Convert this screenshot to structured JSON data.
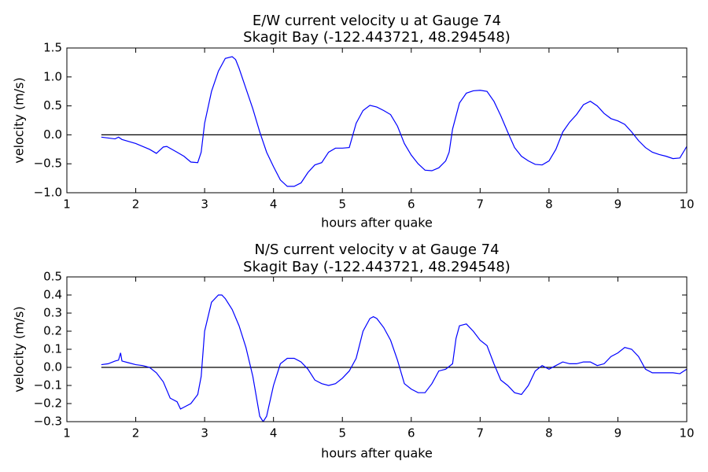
{
  "chart_data": [
    {
      "type": "line",
      "title": "E/W current velocity u at Gauge 74",
      "subtitle": "Skagit Bay  (-122.443721, 48.294548)",
      "xlabel": "hours after quake",
      "ylabel": "velocity (m/s)",
      "color": "#0000ff",
      "hline": 0,
      "hline_color": "#000000",
      "xlim": [
        1,
        10
      ],
      "xticks": [
        1,
        2,
        3,
        4,
        5,
        6,
        7,
        8,
        9,
        10
      ],
      "ylim": [
        -1.0,
        1.5
      ],
      "yticks": [
        {
          "value": -1.0,
          "label": "−1.0"
        },
        {
          "value": -0.5,
          "label": "−0.5"
        },
        {
          "value": 0.0,
          "label": "0.0"
        },
        0.5,
        {
          "value": 1.0,
          "label": "1.0"
        },
        1.5
      ],
      "x": [
        1.5,
        1.7,
        1.75,
        1.8,
        2.0,
        2.2,
        2.3,
        2.4,
        2.45,
        2.6,
        2.7,
        2.8,
        2.9,
        2.95,
        3.0,
        3.1,
        3.2,
        3.3,
        3.4,
        3.45,
        3.5,
        3.6,
        3.7,
        3.8,
        3.9,
        4.0,
        4.1,
        4.2,
        4.3,
        4.4,
        4.5,
        4.6,
        4.7,
        4.8,
        4.9,
        5.0,
        5.1,
        5.2,
        5.3,
        5.4,
        5.5,
        5.6,
        5.7,
        5.8,
        5.9,
        6.0,
        6.1,
        6.2,
        6.3,
        6.4,
        6.5,
        6.55,
        6.6,
        6.7,
        6.8,
        6.9,
        7.0,
        7.1,
        7.2,
        7.3,
        7.4,
        7.5,
        7.6,
        7.7,
        7.8,
        7.9,
        8.0,
        8.1,
        8.2,
        8.3,
        8.4,
        8.5,
        8.6,
        8.7,
        8.8,
        8.9,
        9.0,
        9.1,
        9.2,
        9.3,
        9.4,
        9.5,
        9.6,
        9.7,
        9.8,
        9.9,
        10.0
      ],
      "values": [
        -0.04,
        -0.07,
        -0.04,
        -0.08,
        -0.15,
        -0.25,
        -0.32,
        -0.21,
        -0.2,
        -0.3,
        -0.37,
        -0.47,
        -0.48,
        -0.3,
        0.2,
        0.75,
        1.1,
        1.32,
        1.35,
        1.3,
        1.15,
        0.8,
        0.45,
        0.05,
        -0.3,
        -0.55,
        -0.78,
        -0.89,
        -0.89,
        -0.83,
        -0.65,
        -0.52,
        -0.48,
        -0.3,
        -0.23,
        -0.23,
        -0.22,
        0.2,
        0.42,
        0.51,
        0.48,
        0.42,
        0.35,
        0.15,
        -0.15,
        -0.35,
        -0.5,
        -0.61,
        -0.62,
        -0.57,
        -0.45,
        -0.3,
        0.1,
        0.55,
        0.72,
        0.76,
        0.77,
        0.75,
        0.58,
        0.33,
        0.05,
        -0.22,
        -0.37,
        -0.45,
        -0.51,
        -0.52,
        -0.45,
        -0.25,
        0.05,
        0.22,
        0.35,
        0.52,
        0.58,
        0.5,
        0.37,
        0.28,
        0.24,
        0.18,
        0.05,
        -0.1,
        -0.22,
        -0.3,
        -0.34,
        -0.37,
        -0.41,
        -0.4,
        -0.2
      ]
    },
    {
      "type": "line",
      "title": "N/S current velocity v at Gauge 74",
      "subtitle": "Skagit Bay  (-122.443721, 48.294548)",
      "xlabel": "hours after quake",
      "ylabel": "velocity (m/s)",
      "color": "#0000ff",
      "hline": 0,
      "hline_color": "#000000",
      "xlim": [
        1,
        10
      ],
      "xticks": [
        1,
        2,
        3,
        4,
        5,
        6,
        7,
        8,
        9,
        10
      ],
      "ylim": [
        -0.3,
        0.5
      ],
      "yticks": [
        {
          "value": -0.3,
          "label": "−0.3"
        },
        {
          "value": -0.2,
          "label": "−0.2"
        },
        {
          "value": -0.1,
          "label": "−0.1"
        },
        {
          "value": 0.0,
          "label": "0.0"
        },
        0.1,
        0.2,
        0.3,
        0.4,
        0.5
      ],
      "x": [
        1.5,
        1.6,
        1.7,
        1.75,
        1.78,
        1.8,
        1.9,
        2.0,
        2.1,
        2.2,
        2.3,
        2.4,
        2.5,
        2.6,
        2.65,
        2.7,
        2.8,
        2.9,
        2.95,
        3.0,
        3.1,
        3.2,
        3.25,
        3.3,
        3.4,
        3.5,
        3.6,
        3.7,
        3.8,
        3.85,
        3.9,
        4.0,
        4.1,
        4.2,
        4.3,
        4.4,
        4.5,
        4.6,
        4.7,
        4.8,
        4.9,
        5.0,
        5.1,
        5.2,
        5.3,
        5.4,
        5.45,
        5.5,
        5.6,
        5.7,
        5.8,
        5.9,
        6.0,
        6.1,
        6.2,
        6.3,
        6.4,
        6.5,
        6.6,
        6.65,
        6.7,
        6.8,
        6.9,
        7.0,
        7.1,
        7.2,
        7.3,
        7.4,
        7.5,
        7.6,
        7.7,
        7.8,
        7.9,
        8.0,
        8.1,
        8.2,
        8.3,
        8.4,
        8.5,
        8.6,
        8.7,
        8.8,
        8.9,
        9.0,
        9.1,
        9.2,
        9.3,
        9.4,
        9.5,
        9.6,
        9.7,
        9.8,
        9.9,
        10.0
      ],
      "values": [
        0.015,
        0.02,
        0.035,
        0.04,
        0.08,
        0.035,
        0.025,
        0.015,
        0.01,
        0.0,
        -0.03,
        -0.08,
        -0.17,
        -0.19,
        -0.23,
        -0.22,
        -0.2,
        -0.15,
        -0.05,
        0.2,
        0.36,
        0.4,
        0.4,
        0.38,
        0.32,
        0.23,
        0.11,
        -0.05,
        -0.27,
        -0.3,
        -0.27,
        -0.1,
        0.02,
        0.05,
        0.05,
        0.03,
        -0.01,
        -0.07,
        -0.09,
        -0.1,
        -0.09,
        -0.06,
        -0.02,
        0.05,
        0.2,
        0.27,
        0.28,
        0.27,
        0.22,
        0.15,
        0.04,
        -0.09,
        -0.12,
        -0.14,
        -0.14,
        -0.09,
        -0.02,
        -0.01,
        0.02,
        0.16,
        0.23,
        0.24,
        0.2,
        0.15,
        0.12,
        0.02,
        -0.07,
        -0.1,
        -0.14,
        -0.15,
        -0.1,
        -0.02,
        0.01,
        -0.01,
        0.01,
        0.03,
        0.02,
        0.02,
        0.03,
        0.03,
        0.01,
        0.02,
        0.06,
        0.08,
        0.11,
        0.1,
        0.06,
        -0.01,
        -0.03,
        -0.03,
        -0.03,
        -0.03,
        -0.035,
        -0.01
      ]
    }
  ]
}
